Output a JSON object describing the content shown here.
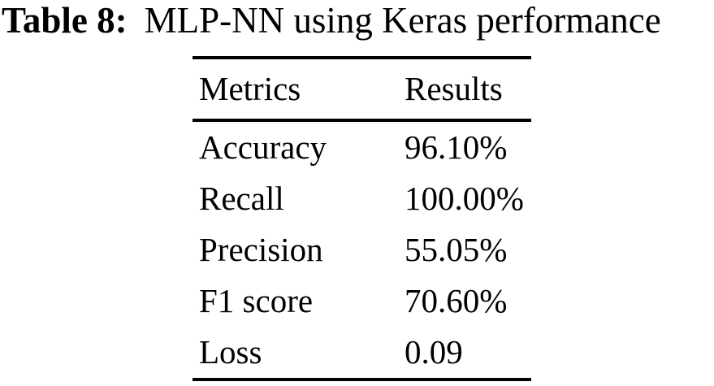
{
  "caption": {
    "label": "Table 8:",
    "title": "MLP-NN using Keras performance"
  },
  "table": {
    "headers": {
      "metric": "Metrics",
      "result": "Results"
    },
    "rows": [
      {
        "metric": "Accuracy",
        "result": "96.10%"
      },
      {
        "metric": "Recall",
        "result": "100.00%"
      },
      {
        "metric": "Precision",
        "result": "55.05%"
      },
      {
        "metric": "F1 score",
        "result": "70.60%"
      },
      {
        "metric": "Loss",
        "result": "0.09"
      }
    ]
  },
  "colors": {
    "text": "#000000",
    "background": "#ffffff",
    "rule": "#000000"
  }
}
